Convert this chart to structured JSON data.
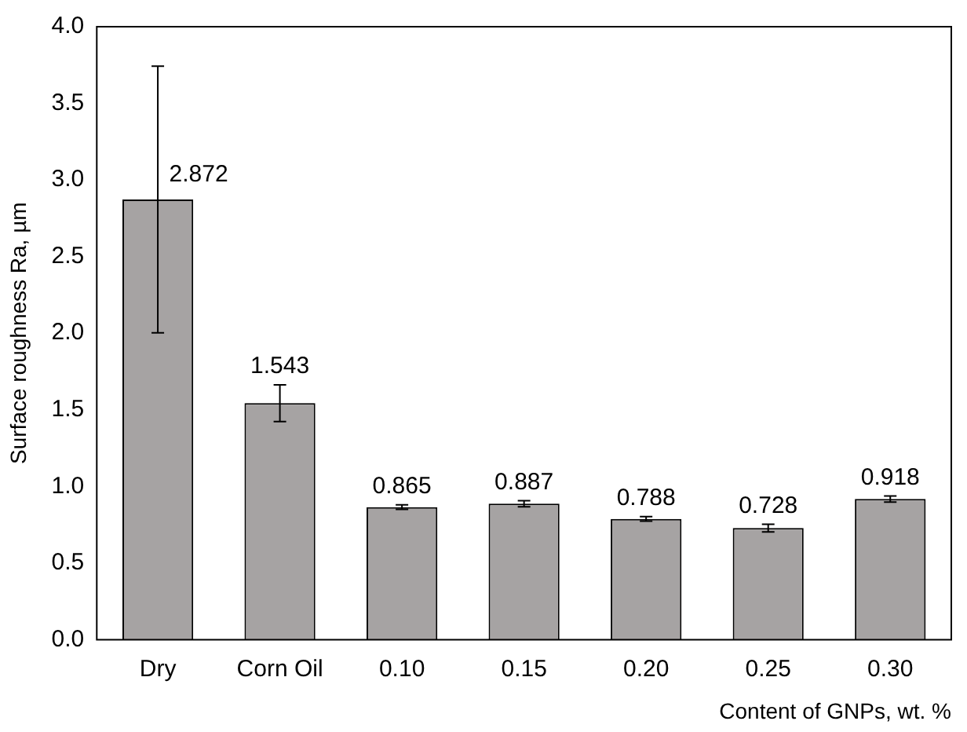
{
  "chart_data": {
    "type": "bar",
    "xlabel": "Content of GNPs, wt. %",
    "ylabel": "Surface roughness Ra, µm",
    "categories": [
      "Dry",
      "Corn Oil",
      "0.10",
      "0.15",
      "0.20",
      "0.25",
      "0.30"
    ],
    "values": [
      2.872,
      1.543,
      0.865,
      0.887,
      0.788,
      0.728,
      0.918
    ],
    "errors": [
      0.87,
      0.12,
      0.015,
      0.02,
      0.015,
      0.025,
      0.02
    ],
    "color": "#a6a3a3",
    "ylim": [
      0,
      4
    ],
    "yticks": [
      {
        "value": 0,
        "label": "0.0"
      },
      {
        "value": 0.5,
        "label": "0.5"
      },
      {
        "value": 1,
        "label": "1.0"
      },
      {
        "value": 1.5,
        "label": "1.5"
      },
      {
        "value": 2,
        "label": "2.0"
      },
      {
        "value": 2.5,
        "label": "2.5"
      },
      {
        "value": 3,
        "label": "3.0"
      },
      {
        "value": 3.5,
        "label": "3.5"
      },
      {
        "value": 4,
        "label": "4.0"
      }
    ],
    "grid": false,
    "legend": false,
    "data_labels": true
  }
}
